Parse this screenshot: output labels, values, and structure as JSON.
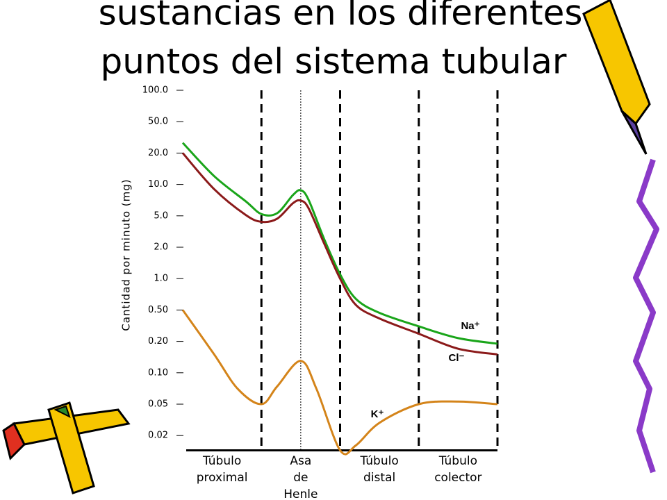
{
  "chart_data": {
    "type": "line",
    "title": [
      "sustancias en los diferentes",
      "puntos del sistema tubular"
    ],
    "y_label": "Cantidad por minuto (mg)",
    "segments": [
      "Túbulo proximal",
      "Asa de Henle",
      "Túbulo distal",
      "Túbulo colector"
    ],
    "log_scale": true,
    "xlim": [
      0,
      4
    ],
    "ylim": [
      0.013,
      100
    ],
    "yticks": [
      {
        "value": 100,
        "label": "100.0"
      },
      {
        "value": 50,
        "label": "50.0"
      },
      {
        "value": 20,
        "label": "20.0"
      },
      {
        "value": 10,
        "label": "10.0"
      },
      {
        "value": 5,
        "label": "5.0"
      },
      {
        "value": 2,
        "label": "2.0"
      },
      {
        "value": 1,
        "label": "1.0"
      },
      {
        "value": 0.5,
        "label": "0.50"
      },
      {
        "value": 0.2,
        "label": "0.20"
      },
      {
        "value": 0.1,
        "label": "0.10"
      },
      0.05,
      0.02
    ],
    "series": [
      {
        "name": "Na⁺",
        "color": "#1aa51a",
        "x": [
          0,
          0.4,
          0.8,
          1.0,
          1.2,
          1.4,
          1.5,
          1.6,
          1.8,
          2.0,
          2.2,
          2.5,
          3.0,
          3.5,
          4.0
        ],
        "values": [
          27,
          12,
          6.9,
          5.2,
          5.3,
          7.9,
          8.8,
          7.1,
          2.5,
          1.1,
          0.64,
          0.46,
          0.31,
          0.22,
          0.19
        ]
      },
      {
        "name": "Cl⁻",
        "color": "#8b1a1a",
        "x": [
          0,
          0.4,
          0.8,
          1.0,
          1.2,
          1.4,
          1.5,
          1.6,
          1.8,
          2.0,
          2.2,
          2.5,
          3.0,
          3.5,
          4.0
        ],
        "values": [
          20,
          9,
          5.1,
          4.2,
          4.6,
          6.6,
          7.0,
          5.9,
          2.2,
          1.0,
          0.56,
          0.39,
          0.25,
          0.17,
          0.15
        ]
      },
      {
        "name": "K⁺",
        "color": "#d4841a",
        "x": [
          0,
          0.4,
          0.7,
          1.0,
          1.2,
          1.5,
          1.7,
          2.0,
          2.2,
          2.5,
          3.0,
          3.5,
          4.0
        ],
        "values": [
          0.5,
          0.15,
          0.07,
          0.05,
          0.074,
          0.13,
          0.07,
          0.013,
          0.015,
          0.029,
          0.05,
          0.053,
          0.05
        ]
      }
    ]
  }
}
